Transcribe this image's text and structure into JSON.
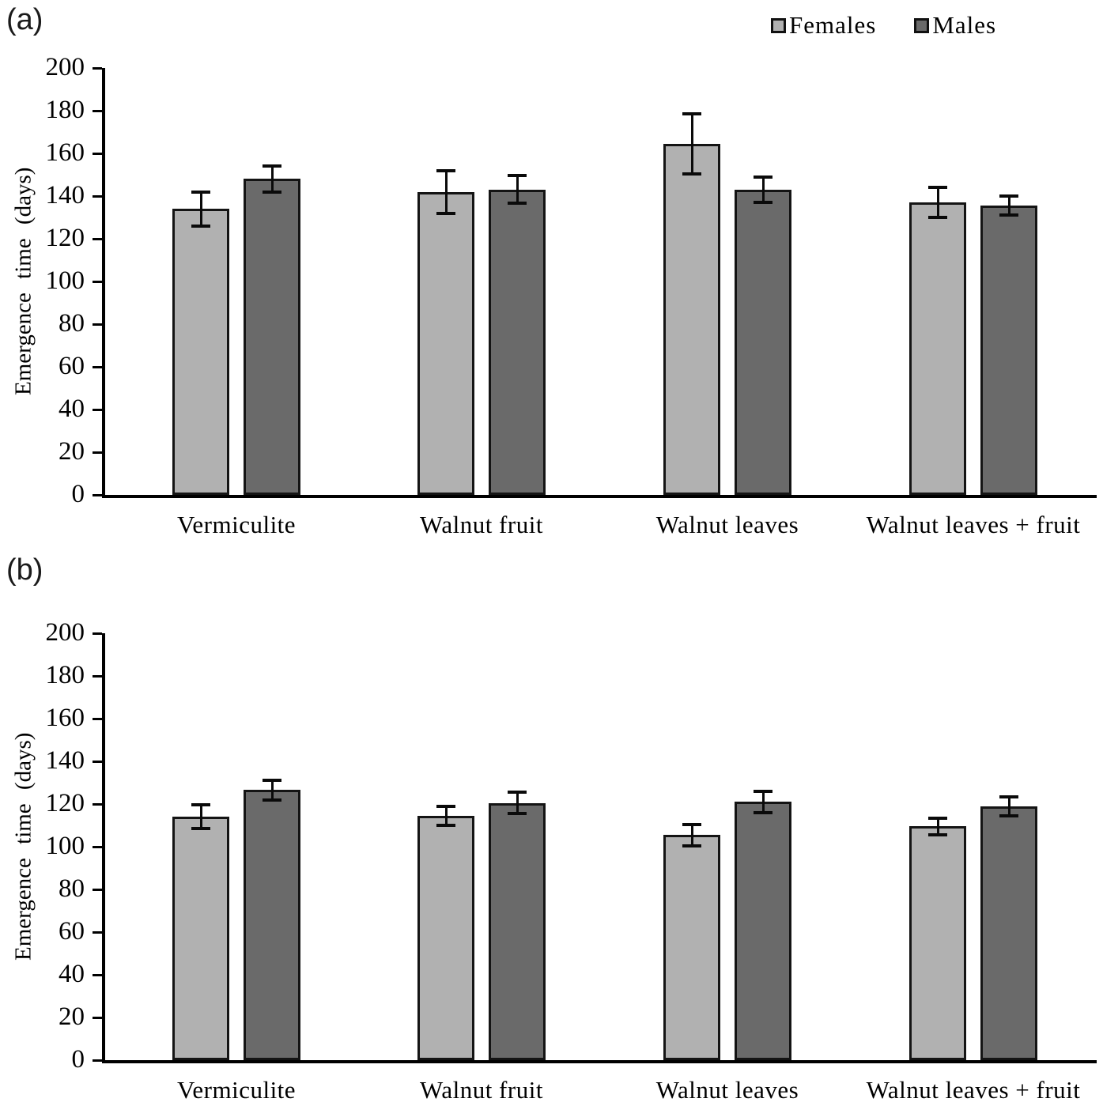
{
  "legend": {
    "items": [
      {
        "label": "Females",
        "color": "#b1b1b1"
      },
      {
        "label": "Males",
        "color": "#6a6a6a"
      }
    ]
  },
  "chart_data": [
    {
      "type": "bar",
      "panel_label": "(a)",
      "categories": [
        "Vermiculite",
        "Walnut fruit",
        "Walnut leaves",
        "Walnut leaves + fruit"
      ],
      "series": [
        {
          "name": "Females",
          "values": [
            134,
            142,
            164.5,
            137
          ],
          "errors": [
            8,
            10,
            14,
            7
          ]
        },
        {
          "name": "Males",
          "values": [
            148,
            143,
            143,
            135.5
          ],
          "errors": [
            6,
            6.5,
            6,
            4.5
          ]
        }
      ],
      "ylabel": "Emergence time (days)",
      "xlabel": "",
      "ylim": [
        0,
        200
      ],
      "ytick_step": 20,
      "grid": false,
      "legend_position": "top-right",
      "error_bars": true
    },
    {
      "type": "bar",
      "panel_label": "(b)",
      "categories": [
        "Vermiculite",
        "Walnut fruit",
        "Walnut leaves",
        "Walnut leaves + fruit"
      ],
      "series": [
        {
          "name": "Females",
          "values": [
            114,
            114.5,
            105.5,
            109.5
          ],
          "errors": [
            5.5,
            4.5,
            5,
            4
          ]
        },
        {
          "name": "Males",
          "values": [
            126.5,
            120.5,
            121,
            119
          ],
          "errors": [
            4.5,
            5,
            5,
            4.5
          ]
        }
      ],
      "ylabel": "Emergence time (days)",
      "xlabel": "",
      "ylim": [
        0,
        200
      ],
      "ytick_step": 20,
      "grid": false,
      "legend_position": "none",
      "error_bars": true
    }
  ]
}
